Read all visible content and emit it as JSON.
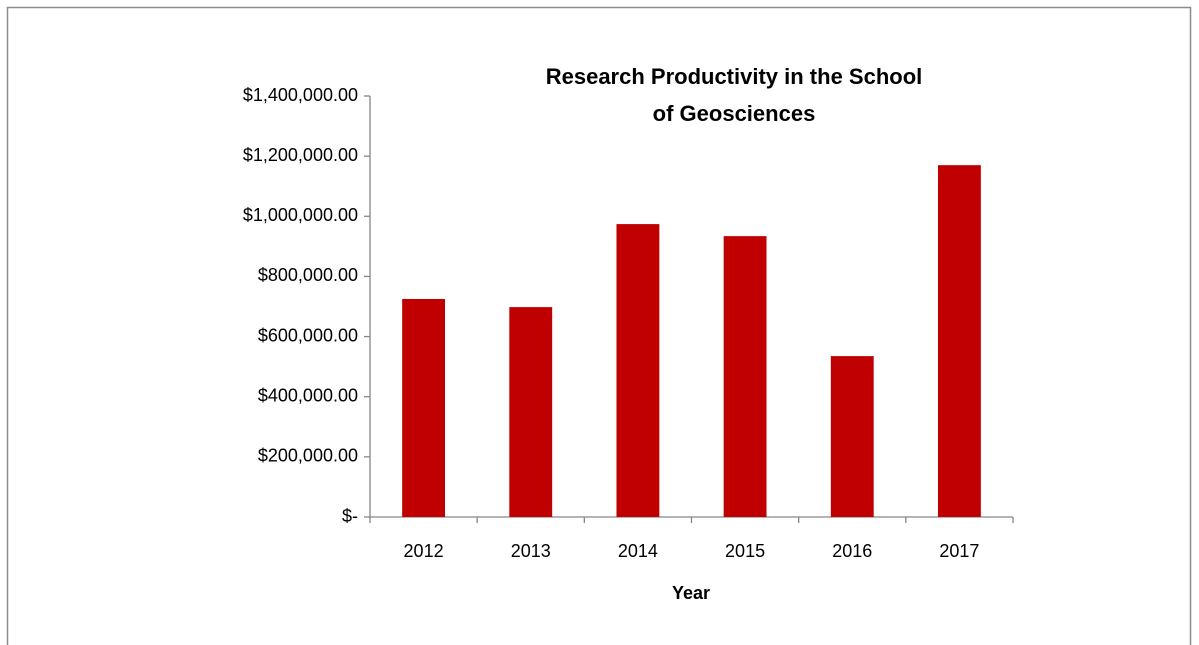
{
  "chart_data": {
    "type": "bar",
    "title": "Research Productivity in the School of Geosciences",
    "x_label": "Year",
    "categories": [
      "2012",
      "2013",
      "2014",
      "2015",
      "2016",
      "2017"
    ],
    "values": [
      725000,
      698000,
      974000,
      934000,
      535000,
      1170000
    ],
    "color": "#c00000",
    "ylim": [
      0,
      1400000
    ],
    "yticks": [
      {
        "value": 0,
        "label": "$-"
      },
      {
        "value": 200000,
        "label": "$200,000.00"
      },
      {
        "value": 400000,
        "label": "$400,000.00"
      },
      {
        "value": 600000,
        "label": "$600,000.00"
      },
      {
        "value": 800000,
        "label": "$800,000.00"
      },
      {
        "value": 1000000,
        "label": "$1,000,000.00"
      },
      {
        "value": 1200000,
        "label": "$1,200,000.00"
      },
      {
        "value": 1400000,
        "label": "$1,400,000.00"
      }
    ],
    "grid": false
  }
}
